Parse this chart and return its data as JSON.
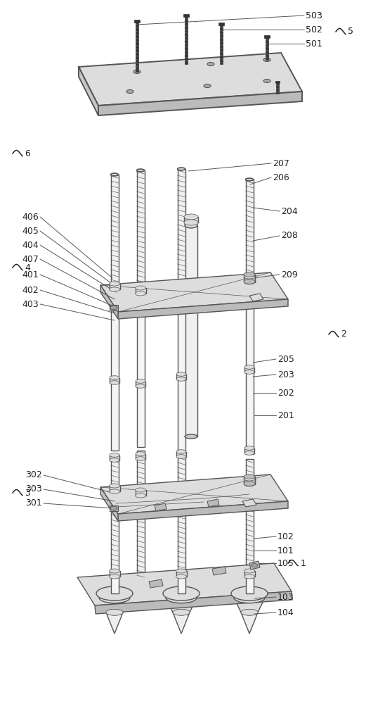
{
  "bg_color": "#ffffff",
  "line_color": "#555555",
  "dark_color": "#222222",
  "gray_color": "#999999",
  "mid_gray": "#bbbbbb",
  "light_gray": "#dddddd",
  "very_light": "#eeeeee",
  "thread_dark": "#666666",
  "thread_light": "#cccccc"
}
